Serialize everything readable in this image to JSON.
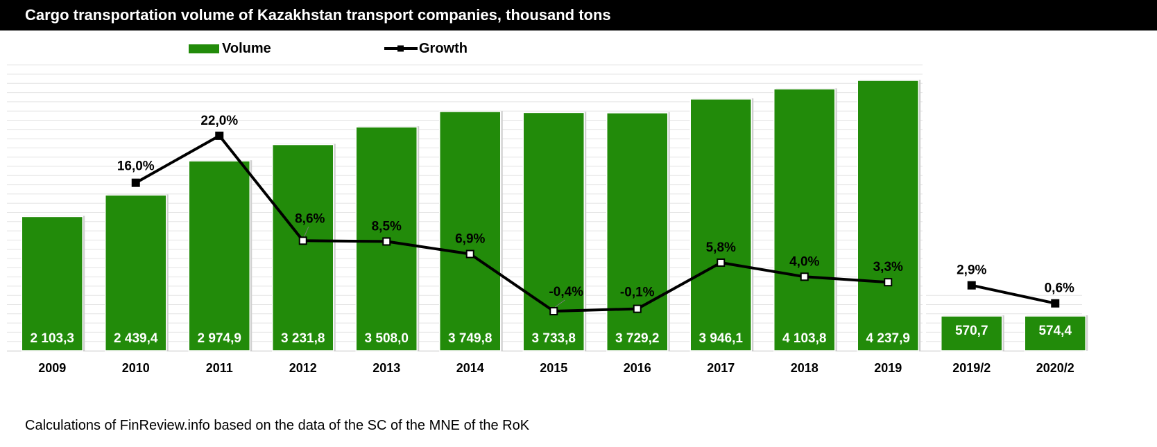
{
  "title": "Cargo transportation volume of Kazakhstan transport companies, thousand tons",
  "footer": "Calculations of FinReview.info based on the data of the SC of the MNE of the RoK",
  "colors": {
    "bar": "#228B0A",
    "line": "#000000",
    "label_on_bar": "#ffffff"
  },
  "chart_data": {
    "type": "bar",
    "title": "Cargo transportation volume of Kazakhstan transport companies, thousand tons",
    "categories": [
      "2009",
      "2010",
      "2011",
      "2012",
      "2013",
      "2014",
      "2015",
      "2016",
      "2017",
      "2018",
      "2019",
      "2019/2",
      "2020/2"
    ],
    "series": [
      {
        "name": "Volume",
        "type": "bar",
        "values": [
          2103.3,
          2439.4,
          2974.9,
          3231.8,
          3508.0,
          3749.8,
          3733.8,
          3729.2,
          3946.1,
          4103.8,
          4237.9,
          570.7,
          574.4
        ],
        "labels": [
          "2 103,3",
          "2 439,4",
          "2 974,9",
          "3 231,8",
          "3 508,0",
          "3 749,8",
          "3 733,8",
          "3 729,2",
          "3 946,1",
          "4 103,8",
          "4 237,9",
          "570,7",
          "574,4"
        ]
      },
      {
        "name": "Growth",
        "type": "line",
        "values": [
          null,
          16.0,
          22.0,
          8.6,
          8.5,
          6.9,
          -0.4,
          -0.1,
          5.8,
          4.0,
          3.3,
          2.9,
          0.6
        ],
        "labels": [
          "",
          "16,0%",
          "22,0%",
          "8,6%",
          "8,5%",
          "6,9%",
          "-0,4%",
          "-0,1%",
          "5,8%",
          "4,0%",
          "3,3%",
          "2,9%",
          "0,6%"
        ],
        "segments": [
          [
            1,
            10
          ],
          [
            11,
            12
          ]
        ]
      }
    ],
    "ylim_volume": [
      0,
      4500
    ],
    "ylim_growth": [
      -2,
      28
    ],
    "legend": "top",
    "grid": true
  }
}
